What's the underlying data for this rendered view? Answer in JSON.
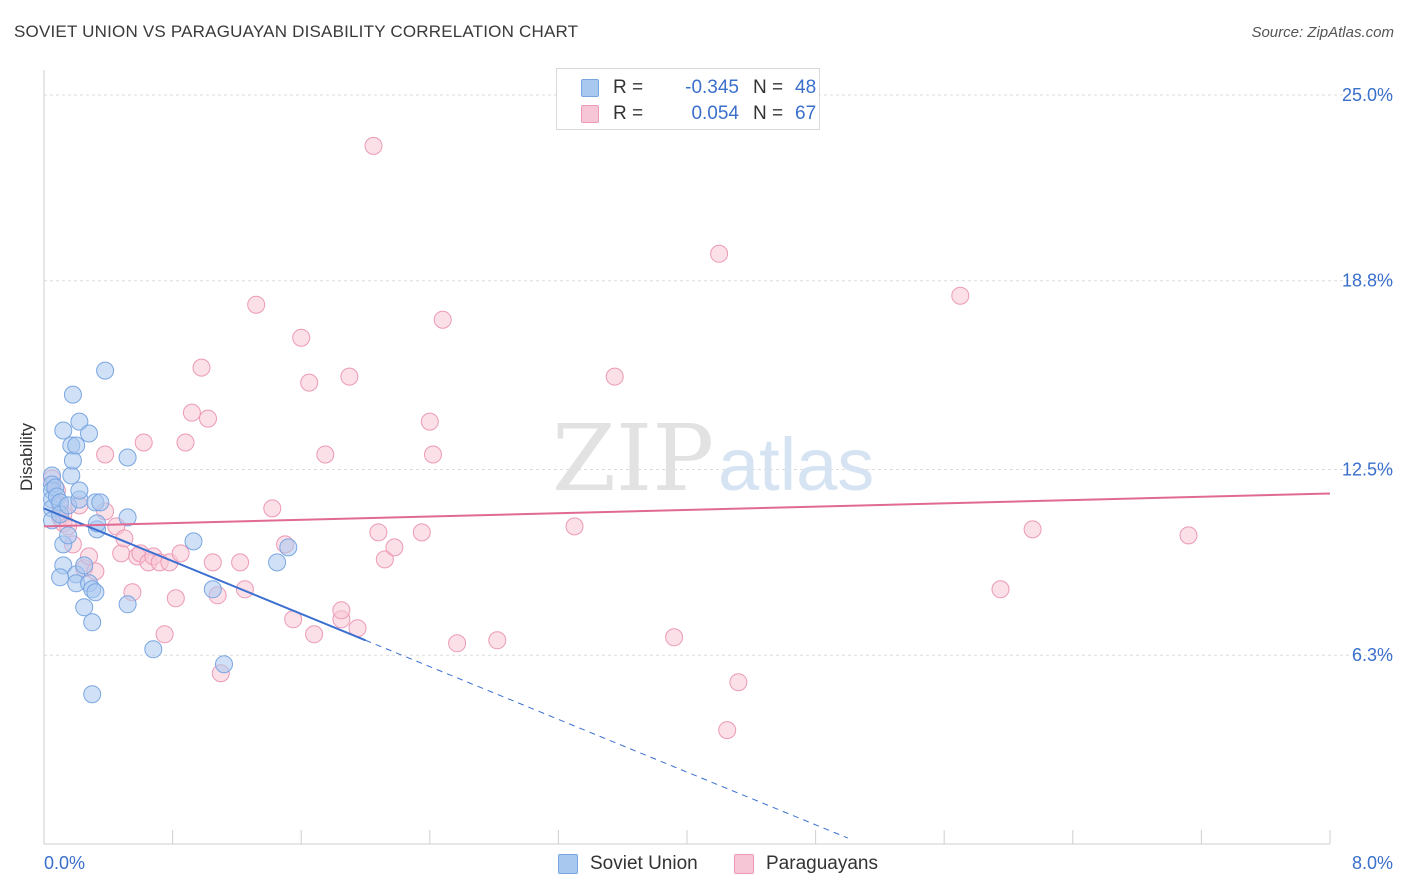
{
  "title": "SOVIET UNION VS PARAGUAYAN DISABILITY CORRELATION CHART",
  "source": "Source: ZipAtlas.com",
  "watermark": {
    "zip": "ZIP",
    "atlas": "atlas"
  },
  "stats": [
    {
      "r_label": "R =",
      "r_value": "-0.345",
      "n_label": "N =",
      "n_value": "48",
      "color": "#a9c8f0",
      "stroke": "#7aa6e0"
    },
    {
      "r_label": "R =",
      "r_value": "0.054",
      "n_label": "N =",
      "n_value": "67",
      "color": "#f7c6d6",
      "stroke": "#ec9ab5"
    }
  ],
  "legend": [
    {
      "label": "Soviet Union",
      "color": "#a9c8f0",
      "stroke": "#7aa6e0"
    },
    {
      "label": "Paraguayans",
      "color": "#f7c6d6",
      "stroke": "#ec9ab5"
    }
  ],
  "axis_labels": {
    "x_min": "0.0%",
    "x_max": "8.0%",
    "y_label": "Disability",
    "y_ticks": [
      "25.0%",
      "18.8%",
      "12.5%",
      "6.3%"
    ]
  },
  "chart_data": {
    "type": "scatter",
    "title": "SOVIET UNION VS PARAGUAYAN DISABILITY CORRELATION CHART",
    "xlabel": "",
    "ylabel": "Disability",
    "xlim": [
      0,
      8
    ],
    "ylim": [
      0,
      25.5
    ],
    "y_ticks": [
      25.0,
      18.8,
      12.5,
      6.3
    ],
    "x_tick_labels": [
      "0.0%",
      "8.0%"
    ],
    "grid": true,
    "legend_position": "bottom-center",
    "series": [
      {
        "name": "Soviet Union",
        "color": "#7aa6e0",
        "fill": "#a9c8f0",
        "r": -0.345,
        "n": 48,
        "trend": {
          "x0": 0.0,
          "y0": 11.2,
          "x1": 2.0,
          "y1": 6.8,
          "dash_to_x": 5.0
        },
        "points": [
          [
            0.05,
            12.3
          ],
          [
            0.05,
            12.0
          ],
          [
            0.05,
            11.8
          ],
          [
            0.05,
            11.5
          ],
          [
            0.05,
            11.2
          ],
          [
            0.05,
            10.8
          ],
          [
            0.07,
            11.9
          ],
          [
            0.08,
            11.6
          ],
          [
            0.1,
            11.4
          ],
          [
            0.1,
            11.0
          ],
          [
            0.12,
            13.8
          ],
          [
            0.12,
            10.0
          ],
          [
            0.12,
            9.3
          ],
          [
            0.15,
            10.3
          ],
          [
            0.15,
            11.3
          ],
          [
            0.17,
            13.3
          ],
          [
            0.17,
            12.3
          ],
          [
            0.18,
            15.0
          ],
          [
            0.18,
            12.8
          ],
          [
            0.2,
            13.3
          ],
          [
            0.2,
            9.0
          ],
          [
            0.2,
            8.7
          ],
          [
            0.22,
            14.1
          ],
          [
            0.22,
            11.5
          ],
          [
            0.22,
            11.8
          ],
          [
            0.25,
            7.9
          ],
          [
            0.25,
            9.3
          ],
          [
            0.28,
            13.7
          ],
          [
            0.28,
            8.7
          ],
          [
            0.3,
            8.5
          ],
          [
            0.3,
            7.4
          ],
          [
            0.3,
            5.0
          ],
          [
            0.32,
            11.4
          ],
          [
            0.32,
            8.4
          ],
          [
            0.33,
            10.5
          ],
          [
            0.33,
            10.7
          ],
          [
            0.35,
            11.4
          ],
          [
            0.38,
            15.8
          ],
          [
            0.52,
            12.9
          ],
          [
            0.52,
            8.0
          ],
          [
            0.52,
            10.9
          ],
          [
            0.68,
            6.5
          ],
          [
            0.93,
            10.1
          ],
          [
            1.05,
            8.5
          ],
          [
            1.12,
            6.0
          ],
          [
            1.45,
            9.4
          ],
          [
            1.52,
            9.9
          ],
          [
            0.1,
            8.9
          ]
        ]
      },
      {
        "name": "Paraguayans",
        "color": "#ec9ab5",
        "fill": "#f7c6d6",
        "r": 0.054,
        "n": 67,
        "trend": {
          "x0": 0.0,
          "y0": 10.6,
          "x1": 8.0,
          "y1": 11.7
        },
        "points": [
          [
            0.05,
            12.2
          ],
          [
            0.08,
            11.8
          ],
          [
            0.1,
            11.3
          ],
          [
            0.1,
            10.9
          ],
          [
            0.12,
            11.0
          ],
          [
            0.12,
            10.7
          ],
          [
            0.15,
            10.6
          ],
          [
            0.18,
            10.0
          ],
          [
            0.22,
            11.3
          ],
          [
            0.25,
            9.2
          ],
          [
            0.28,
            9.6
          ],
          [
            0.32,
            9.1
          ],
          [
            0.38,
            11.1
          ],
          [
            0.38,
            13.0
          ],
          [
            0.45,
            10.6
          ],
          [
            0.48,
            9.7
          ],
          [
            0.5,
            10.2
          ],
          [
            0.55,
            8.4
          ],
          [
            0.58,
            9.6
          ],
          [
            0.6,
            9.7
          ],
          [
            0.62,
            13.4
          ],
          [
            0.65,
            9.4
          ],
          [
            0.68,
            9.6
          ],
          [
            0.72,
            9.4
          ],
          [
            0.75,
            7.0
          ],
          [
            0.78,
            9.4
          ],
          [
            0.82,
            8.2
          ],
          [
            0.85,
            9.7
          ],
          [
            0.88,
            13.4
          ],
          [
            0.92,
            14.4
          ],
          [
            0.98,
            15.9
          ],
          [
            1.02,
            14.2
          ],
          [
            1.05,
            9.4
          ],
          [
            1.08,
            8.3
          ],
          [
            1.1,
            5.7
          ],
          [
            1.22,
            9.4
          ],
          [
            1.25,
            8.5
          ],
          [
            1.32,
            18.0
          ],
          [
            1.42,
            11.2
          ],
          [
            1.5,
            10.0
          ],
          [
            1.55,
            7.5
          ],
          [
            1.6,
            16.9
          ],
          [
            1.65,
            15.4
          ],
          [
            1.68,
            7.0
          ],
          [
            1.75,
            13.0
          ],
          [
            1.85,
            7.5
          ],
          [
            1.85,
            7.8
          ],
          [
            1.9,
            15.6
          ],
          [
            1.95,
            7.2
          ],
          [
            2.05,
            23.3
          ],
          [
            2.08,
            10.4
          ],
          [
            2.12,
            9.5
          ],
          [
            2.18,
            9.9
          ],
          [
            2.35,
            10.4
          ],
          [
            2.4,
            14.1
          ],
          [
            2.42,
            13.0
          ],
          [
            2.48,
            17.5
          ],
          [
            2.57,
            6.7
          ],
          [
            2.82,
            6.8
          ],
          [
            3.3,
            10.6
          ],
          [
            3.55,
            15.6
          ],
          [
            3.92,
            6.9
          ],
          [
            4.2,
            19.7
          ],
          [
            4.25,
            3.8
          ],
          [
            4.32,
            5.4
          ],
          [
            5.7,
            18.3
          ],
          [
            6.15,
            10.5
          ]
        ],
        "extra_points": [
          [
            5.95,
            8.5
          ],
          [
            7.12,
            10.3
          ]
        ]
      }
    ]
  }
}
